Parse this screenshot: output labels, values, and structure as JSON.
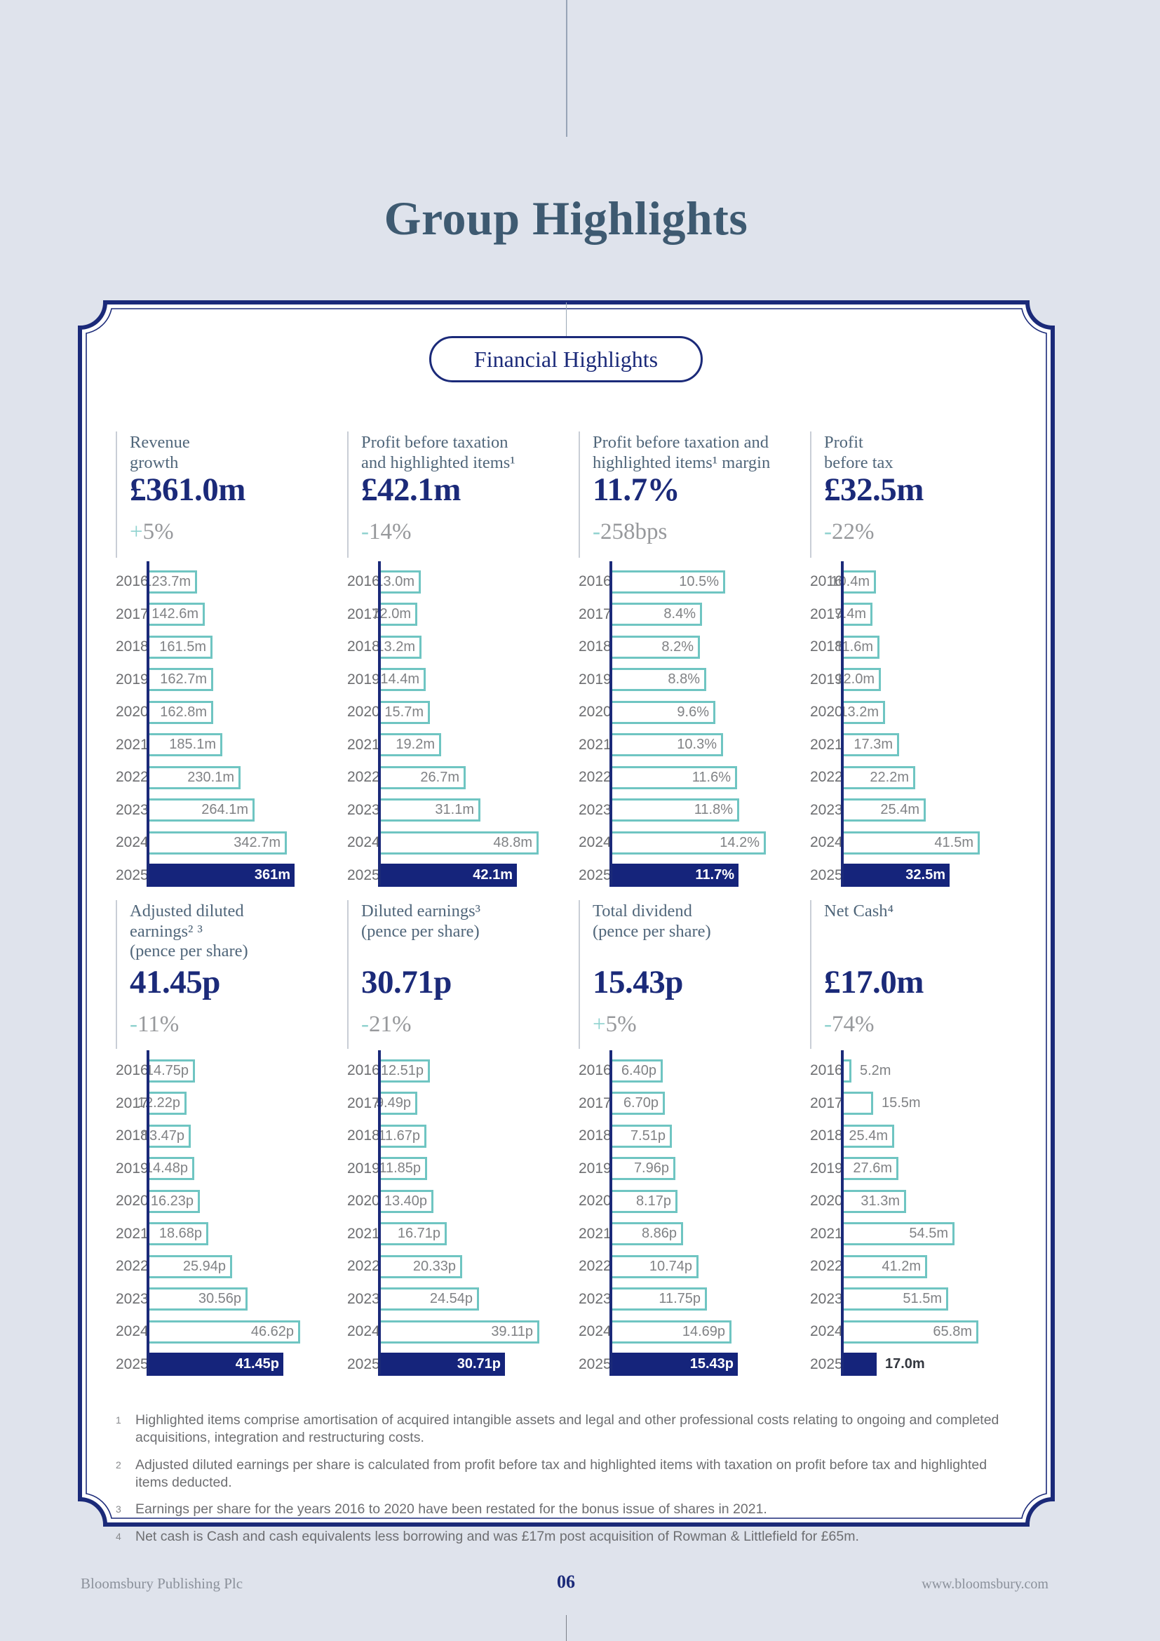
{
  "header": {
    "title": "Group Highlights"
  },
  "panel": {
    "label": "Financial Highlights"
  },
  "years": [
    "2016",
    "2017",
    "2018",
    "2019",
    "2020",
    "2021",
    "2022",
    "2023",
    "2024",
    "2025"
  ],
  "colors": {
    "page_bg": "#dfe3ec",
    "navy": "#1b2a79",
    "bar_navy": "#15247b",
    "teal_border": "#6fc5c2",
    "teal_sign": "#8fd2cf",
    "slate_label": "#50667a",
    "title_slate": "#3e5a71",
    "gray_text": "#808285"
  },
  "metrics": [
    {
      "label_lines": [
        "Revenue",
        "growth"
      ],
      "value": "£361.0m",
      "change_sign": "+",
      "change_text": "5%",
      "chart": {
        "type": "bar",
        "values": [
          123.7,
          142.6,
          161.5,
          162.7,
          162.8,
          185.1,
          230.1,
          264.1,
          342.7,
          361
        ],
        "labels": [
          "123.7m",
          "142.6m",
          "161.5m",
          "162.7m",
          "162.8m",
          "185.1m",
          "230.1m",
          "264.1m",
          "342.7m",
          "361m"
        ],
        "label_out": []
      }
    },
    {
      "label_lines": [
        "Profit before taxation",
        "and highlighted items¹"
      ],
      "value": "£42.1m",
      "change_sign": "-",
      "change_text": "14%",
      "chart": {
        "type": "bar",
        "values": [
          13.0,
          12.0,
          13.2,
          14.4,
          15.7,
          19.2,
          26.7,
          31.1,
          48.8,
          42.1
        ],
        "labels": [
          "13.0m",
          "12.0m",
          "13.2m",
          "14.4m",
          "15.7m",
          "19.2m",
          "26.7m",
          "31.1m",
          "48.8m",
          "42.1m"
        ],
        "label_out": []
      }
    },
    {
      "label_lines": [
        "Profit before taxation and",
        "highlighted items¹ margin"
      ],
      "value": "11.7%",
      "change_sign": "-",
      "change_text": "258bps",
      "chart": {
        "type": "bar",
        "values": [
          10.5,
          8.4,
          8.2,
          8.8,
          9.6,
          10.3,
          11.6,
          11.8,
          14.2,
          11.7
        ],
        "labels": [
          "10.5%",
          "8.4%",
          "8.2%",
          "8.8%",
          "9.6%",
          "10.3%",
          "11.6%",
          "11.8%",
          "14.2%",
          "11.7%"
        ],
        "label_out": []
      }
    },
    {
      "label_lines": [
        "Profit",
        "before tax"
      ],
      "value": "£32.5m",
      "change_sign": "-",
      "change_text": "22%",
      "chart": {
        "type": "bar",
        "values": [
          10.4,
          9.4,
          11.6,
          12.0,
          13.2,
          17.3,
          22.2,
          25.4,
          41.5,
          32.5
        ],
        "labels": [
          "10.4m",
          "9.4m",
          "11.6m",
          "12.0m",
          "13.2m",
          "17.3m",
          "22.2m",
          "25.4m",
          "41.5m",
          "32.5m"
        ],
        "label_out": []
      }
    },
    {
      "label_lines": [
        "Adjusted diluted",
        "earnings² ³",
        "(pence per share)"
      ],
      "value": "41.45p",
      "change_sign": "-",
      "change_text": "11%",
      "chart": {
        "type": "bar",
        "values": [
          14.75,
          12.22,
          13.47,
          14.48,
          16.23,
          18.68,
          25.94,
          30.56,
          46.62,
          41.45
        ],
        "labels": [
          "14.75p",
          "12.22p",
          "13.47p",
          "14.48p",
          "16.23p",
          "18.68p",
          "25.94p",
          "30.56p",
          "46.62p",
          "41.45p"
        ],
        "label_out": []
      }
    },
    {
      "label_lines": [
        "Diluted earnings³",
        "(pence per share)"
      ],
      "value": "30.71p",
      "change_sign": "-",
      "change_text": "21%",
      "chart": {
        "type": "bar",
        "values": [
          12.51,
          9.49,
          11.67,
          11.85,
          13.4,
          16.71,
          20.33,
          24.54,
          39.11,
          30.71
        ],
        "labels": [
          "12.51p",
          "9.49p",
          "11.67p",
          "11.85p",
          "13.40p",
          "16.71p",
          "20.33p",
          "24.54p",
          "39.11p",
          "30.71p"
        ],
        "label_out": []
      }
    },
    {
      "label_lines": [
        "Total dividend",
        "(pence per share)"
      ],
      "value": "15.43p",
      "change_sign": "+",
      "change_text": "5%",
      "chart": {
        "type": "bar",
        "values": [
          6.4,
          6.7,
          7.51,
          7.96,
          8.17,
          8.86,
          10.74,
          11.75,
          14.69,
          15.43
        ],
        "labels": [
          "6.40p",
          "6.70p",
          "7.51p",
          "7.96p",
          "8.17p",
          "8.86p",
          "10.74p",
          "11.75p",
          "14.69p",
          "15.43p"
        ],
        "label_out": []
      }
    },
    {
      "label_lines": [
        "Net Cash⁴"
      ],
      "value": "£17.0m",
      "change_sign": "-",
      "change_text": "74%",
      "chart": {
        "type": "bar",
        "values": [
          5.2,
          15.5,
          25.4,
          27.6,
          31.3,
          54.5,
          41.2,
          51.5,
          65.8,
          17.0
        ],
        "labels": [
          "5.2m",
          "15.5m",
          "25.4m",
          "27.6m",
          "31.3m",
          "54.5m",
          "41.2m",
          "51.5m",
          "65.8m",
          "17.0m"
        ],
        "label_out": [
          0,
          1,
          9
        ]
      }
    }
  ],
  "footnotes": [
    {
      "n": "1",
      "text": "Highlighted items comprise amortisation of acquired intangible assets and legal and other professional costs relating to ongoing and completed acquisitions, integration and restructuring costs."
    },
    {
      "n": "2",
      "text": "Adjusted diluted earnings per share is calculated from profit before tax and highlighted items with taxation on profit before tax and highlighted items deducted."
    },
    {
      "n": "3",
      "text": "Earnings per share for the years 2016 to 2020 have been restated for the bonus issue of shares in 2021."
    },
    {
      "n": "4",
      "text": "Net cash is Cash and cash equivalents less borrowing and was £17m post acquisition of Rowman & Littlefield for £65m."
    }
  ],
  "footer": {
    "company": "Bloomsbury Publishing Plc",
    "page_number": "06",
    "site": "www.bloomsbury.com"
  }
}
